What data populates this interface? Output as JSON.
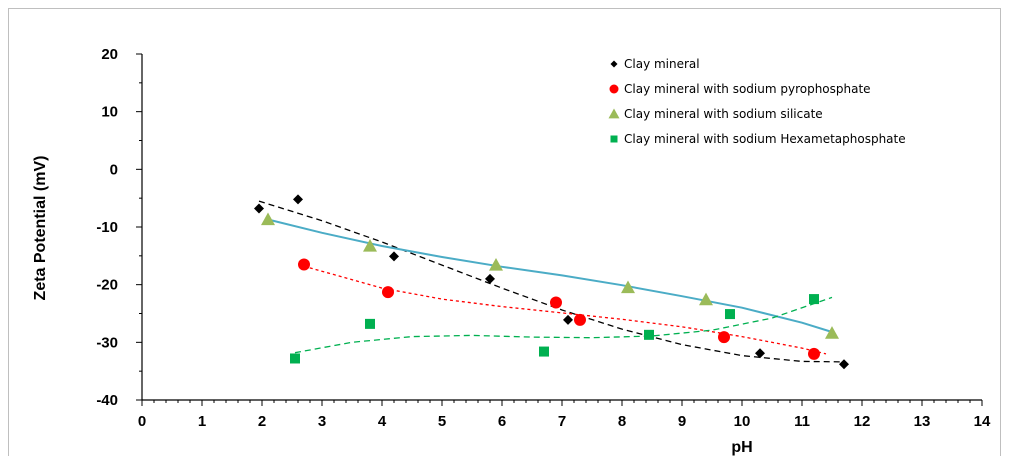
{
  "chart_data": {
    "type": "scatter",
    "xlabel": "pH",
    "ylabel": "Zeta Potential (mV)",
    "xlim": [
      0,
      14
    ],
    "ylim": [
      -40,
      20
    ],
    "x_ticks": [
      "0",
      "1",
      "2",
      "3",
      "4",
      "5",
      "6",
      "7",
      "8",
      "9",
      "10",
      "11",
      "12",
      "13",
      "14"
    ],
    "y_ticks": [
      "20",
      "10",
      "0",
      "-10",
      "-20",
      "-30",
      "-40"
    ],
    "grid": false,
    "legend_position": "top-right",
    "series": [
      {
        "name": "Clay mineral",
        "marker": "diamond",
        "color": "#000000",
        "trendline": "dashed",
        "trend_color": "#000000",
        "points": [
          [
            1.95,
            -6.8
          ],
          [
            2.6,
            -5.2
          ],
          [
            4.2,
            -15.1
          ],
          [
            5.8,
            -19.0
          ],
          [
            7.1,
            -26.1
          ],
          [
            10.3,
            -31.9
          ],
          [
            11.7,
            -33.8
          ]
        ],
        "trend": [
          [
            1.95,
            -5.5
          ],
          [
            3,
            -8.9
          ],
          [
            4,
            -12.6
          ],
          [
            5,
            -16.6
          ],
          [
            6,
            -20.6
          ],
          [
            7,
            -24.4
          ],
          [
            8,
            -27.7
          ],
          [
            9,
            -30.4
          ],
          [
            10,
            -32.3
          ],
          [
            11,
            -33.3
          ],
          [
            11.7,
            -33.4
          ]
        ]
      },
      {
        "name": "Clay mineral with sodium pyrophosphate",
        "marker": "circle",
        "color": "#ff0000",
        "trendline": "dotted",
        "trend_color": "#ff0000",
        "points": [
          [
            2.7,
            -16.5
          ],
          [
            4.1,
            -21.3
          ],
          [
            6.9,
            -23.1
          ],
          [
            7.3,
            -26.1
          ],
          [
            9.7,
            -29.1
          ],
          [
            11.2,
            -32.0
          ]
        ],
        "trend": [
          [
            2.7,
            -16.8
          ],
          [
            4,
            -20.6
          ],
          [
            5,
            -22.5
          ],
          [
            6,
            -23.8
          ],
          [
            7,
            -24.9
          ],
          [
            8,
            -26.0
          ],
          [
            9,
            -27.3
          ],
          [
            10,
            -29.0
          ],
          [
            11,
            -31.0
          ],
          [
            11.4,
            -32.0
          ]
        ]
      },
      {
        "name": "Clay mineral with sodium silicate",
        "marker": "triangle",
        "color": "#9bbb59",
        "trendline": "solid",
        "trend_color": "#4bacc6",
        "points": [
          [
            2.1,
            -8.7
          ],
          [
            3.8,
            -13.3
          ],
          [
            5.9,
            -16.6
          ],
          [
            8.1,
            -20.5
          ],
          [
            9.4,
            -22.6
          ],
          [
            11.5,
            -28.4
          ]
        ],
        "trend": [
          [
            2.1,
            -8.7
          ],
          [
            3,
            -11.0
          ],
          [
            4,
            -13.3
          ],
          [
            5,
            -15.2
          ],
          [
            6,
            -16.9
          ],
          [
            7,
            -18.4
          ],
          [
            8,
            -20.1
          ],
          [
            9,
            -22.0
          ],
          [
            10,
            -24.0
          ],
          [
            11,
            -26.6
          ],
          [
            11.5,
            -28.2
          ]
        ]
      },
      {
        "name": "Clay mineral with sodium Hexametaphosphate",
        "marker": "square",
        "color": "#00b050",
        "trendline": "dashed",
        "trend_color": "#00b050",
        "points": [
          [
            2.55,
            -32.8
          ],
          [
            3.8,
            -26.8
          ],
          [
            6.7,
            -31.6
          ],
          [
            8.45,
            -28.7
          ],
          [
            9.8,
            -25.1
          ],
          [
            11.2,
            -22.5
          ]
        ],
        "trend": [
          [
            2.55,
            -31.8
          ],
          [
            3.5,
            -30.0
          ],
          [
            4.5,
            -29.0
          ],
          [
            5.5,
            -28.8
          ],
          [
            6.5,
            -29.1
          ],
          [
            7.5,
            -29.2
          ],
          [
            8.5,
            -28.9
          ],
          [
            9.5,
            -27.9
          ],
          [
            10.5,
            -25.8
          ],
          [
            11.5,
            -22.2
          ]
        ]
      }
    ]
  }
}
